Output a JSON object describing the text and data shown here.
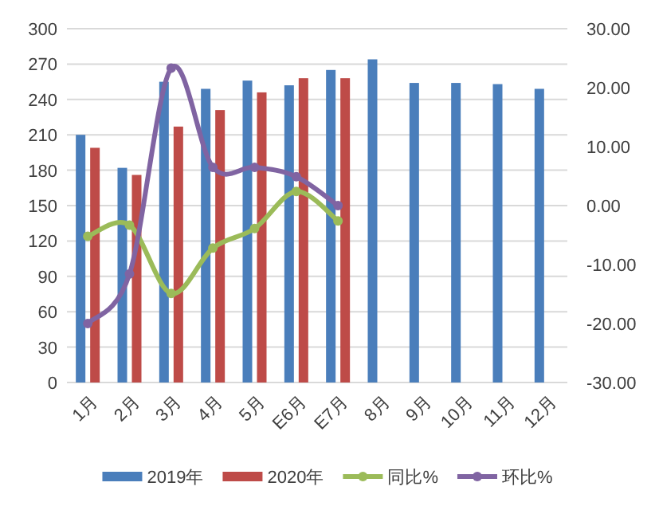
{
  "chart_data": {
    "type": "bar",
    "categories": [
      "1月",
      "2月",
      "3月",
      "4月",
      "5月",
      "E6月",
      "E7月",
      "8月",
      "9月",
      "10月",
      "11月",
      "12月"
    ],
    "series": [
      {
        "name": "2019年",
        "color": "#4a7ebb",
        "values": [
          210,
          182,
          255,
          249,
          256,
          252,
          265,
          274,
          254,
          254,
          253,
          249
        ]
      },
      {
        "name": "2020年",
        "color": "#be4b48",
        "values": [
          199,
          176,
          217,
          231,
          246,
          258,
          258,
          null,
          null,
          null,
          null,
          null
        ]
      },
      {
        "name": "同比%",
        "type": "line",
        "axis": "y2",
        "color": "#9bbb59",
        "values": [
          -5.2,
          -3.3,
          -14.9,
          -7.2,
          -3.9,
          2.4,
          -2.6,
          null,
          null,
          null,
          null,
          null
        ]
      },
      {
        "name": "环比%",
        "type": "line",
        "axis": "y2",
        "color": "#8064a2",
        "values": [
          -20,
          -11.6,
          23.3,
          6.5,
          6.5,
          4.9,
          0,
          null,
          null,
          null,
          null,
          null
        ]
      }
    ],
    "ylim": [
      0,
      300
    ],
    "yticks": [
      0,
      30,
      60,
      90,
      120,
      150,
      180,
      210,
      240,
      270,
      300
    ],
    "y2lim": [
      -30,
      30
    ],
    "y2ticks": [
      {
        "value": -30,
        "label": "-30.00"
      },
      {
        "value": -20,
        "label": "-20.00"
      },
      {
        "value": -10,
        "label": "-10.00"
      },
      {
        "value": 0,
        "label": "0.00"
      },
      {
        "value": 10,
        "label": "10.00"
      },
      {
        "value": 20,
        "label": "20.00"
      },
      {
        "value": 30,
        "label": "30.00"
      }
    ],
    "grid": "y",
    "legend": "bottom",
    "marker": "circle"
  }
}
